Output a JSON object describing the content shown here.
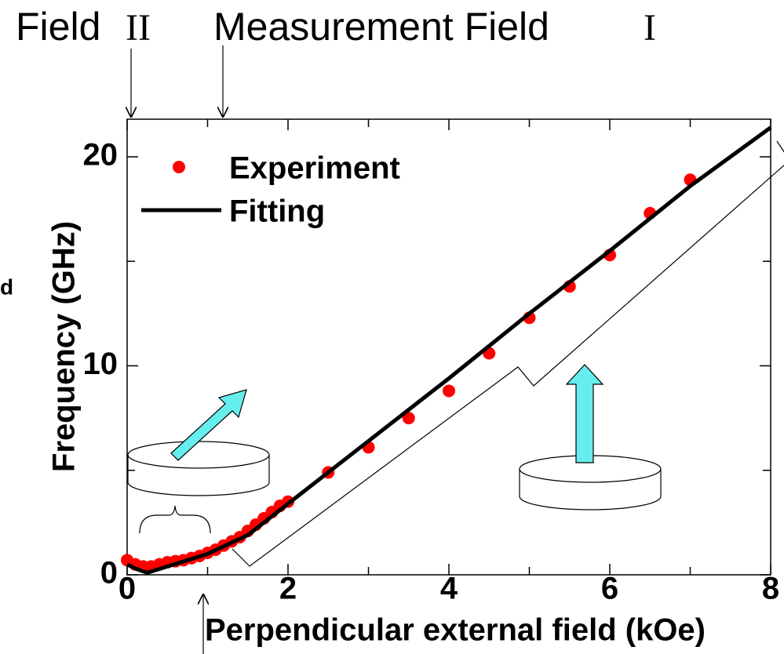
{
  "chart_data": {
    "type": "scatter-line",
    "annotations": [
      "Field",
      "II",
      "Measurement Field",
      "I",
      "d"
    ],
    "x_label": "Perpendicular external field (kOe)",
    "y_label": "Frequency (GHz)",
    "xlim": [
      0,
      8
    ],
    "xticks": [
      0,
      2,
      4,
      6,
      8
    ],
    "xminorticks": [
      1,
      3,
      5,
      7
    ],
    "ylim": [
      0,
      21.8
    ],
    "yticks": [
      0,
      10,
      20
    ],
    "yminorticks": [
      5,
      15
    ],
    "legend": "upper left",
    "series": [
      {
        "name": "Experiment",
        "type": "scatter",
        "color": "#ff0000",
        "x": [
          0,
          0.1,
          0.2,
          0.3,
          0.4,
          0.5,
          0.6,
          0.7,
          0.8,
          0.9,
          1.0,
          1.1,
          1.2,
          1.3,
          1.4,
          1.5,
          1.6,
          1.7,
          1.8,
          1.9,
          2.0,
          2.5,
          3.0,
          3.5,
          4.0,
          4.5,
          5.0,
          5.5,
          6.0,
          6.5,
          7.0
        ],
        "values": [
          0.7,
          0.5,
          0.4,
          0.4,
          0.5,
          0.6,
          0.65,
          0.7,
          0.8,
          0.9,
          1.05,
          1.2,
          1.4,
          1.6,
          1.8,
          2.1,
          2.4,
          2.7,
          3.0,
          3.3,
          3.5,
          4.9,
          6.1,
          7.5,
          8.8,
          10.6,
          12.3,
          13.8,
          15.3,
          17.3,
          18.9
        ]
      },
      {
        "name": "Fitting",
        "type": "line",
        "color": "#000000",
        "x": [
          0,
          0.1,
          0.25,
          0.5,
          1,
          1.5,
          2,
          3,
          4,
          5,
          6,
          7,
          8
        ],
        "values": [
          0.5,
          0.3,
          0.1,
          0.4,
          1.0,
          1.9,
          3.4,
          6.4,
          9.4,
          12.5,
          15.5,
          18.6,
          21.4
        ]
      }
    ]
  }
}
